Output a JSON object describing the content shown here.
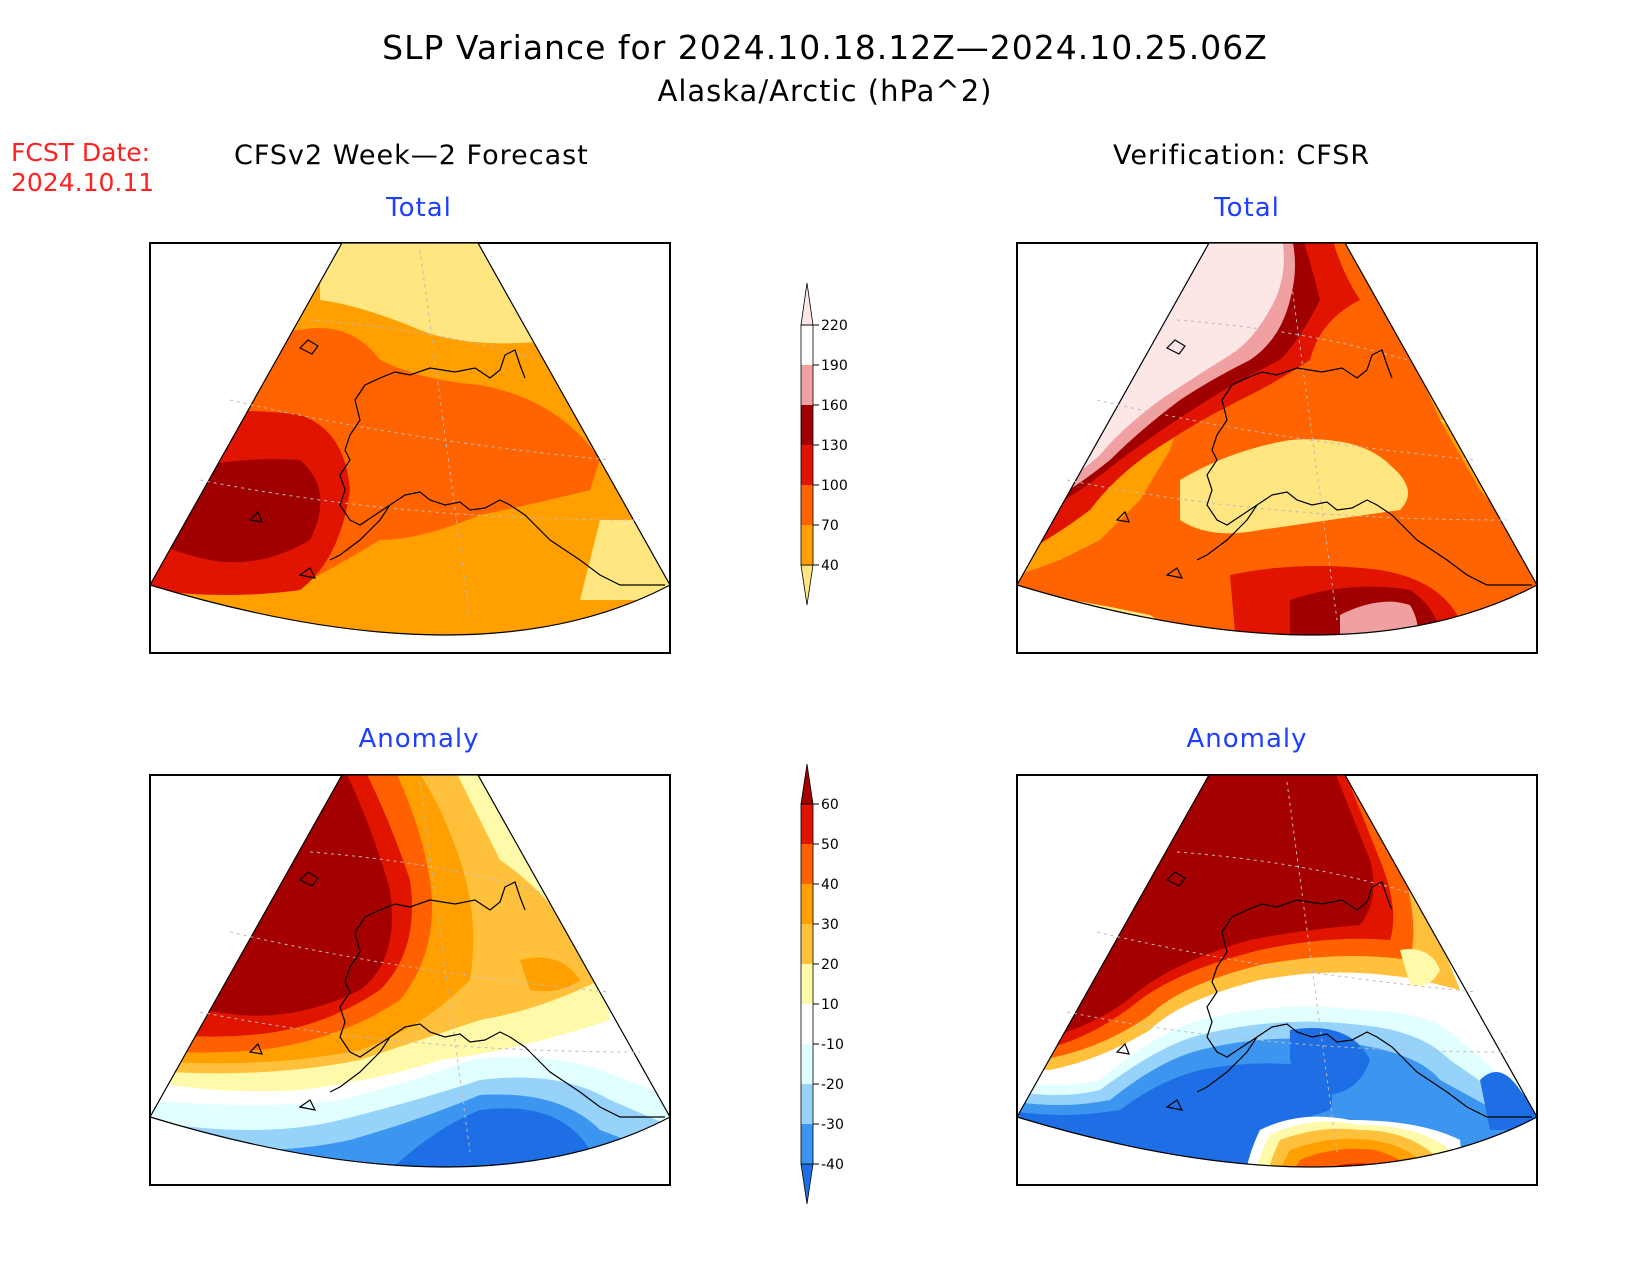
{
  "title": "SLP Variance for 2024.10.18.12Z—2024.10.25.06Z",
  "subtitle": "Alaska/Arctic (hPa^2)",
  "fcst_date": {
    "label": "FCST Date:",
    "value": "2024.10.11"
  },
  "columns": {
    "left": "CFSv2 Week—2 Forecast",
    "right": "Verification: CFSR"
  },
  "panels": {
    "total": "Total",
    "anomaly": "Anomaly"
  },
  "total_colorbar": {
    "levels": [
      "40",
      "70",
      "100",
      "130",
      "160",
      "190",
      "220"
    ],
    "colors": [
      "#ffe680",
      "#ffa000",
      "#ff6400",
      "#e01400",
      "#a00000",
      "#f0a0a0",
      "#fce6e6"
    ]
  },
  "anomaly_colorbar": {
    "levels": [
      "-40",
      "-30",
      "-20",
      "-10",
      "10",
      "20",
      "30",
      "40",
      "50",
      "60"
    ],
    "colors": [
      "#1e6ee6",
      "#3c96f0",
      "#96d2fa",
      "#e1ffff",
      "#ffffff",
      "#fffaaa",
      "#ffc03c",
      "#ffa000",
      "#ff6000",
      "#e11400",
      "#a50000"
    ]
  },
  "colors": {
    "title": "#000000",
    "fcst_date": "#ff2020",
    "panel_heading": "#1f3fff"
  }
}
